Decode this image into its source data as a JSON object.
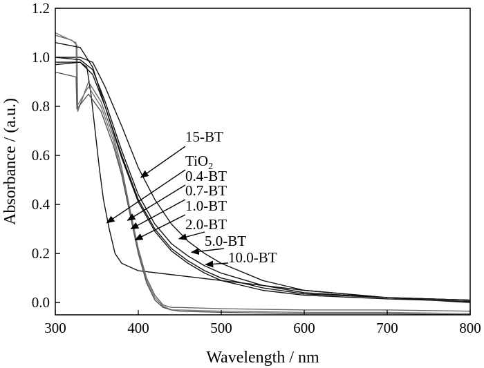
{
  "chart_data": {
    "type": "line",
    "title": "",
    "xlabel": "Wavelength / nm",
    "ylabel": "Absorbance / (a.u.)",
    "xlim": [
      300,
      800
    ],
    "ylim": [
      -0.05,
      1.2
    ],
    "xticks": [
      300,
      400,
      500,
      600,
      700,
      800
    ],
    "yticks": [
      0.0,
      0.2,
      0.4,
      0.6,
      0.8,
      1.0,
      1.2
    ],
    "ytick_labels": [
      "0.0",
      "0.2",
      "0.4",
      "0.6",
      "0.8",
      "1.0",
      "1.2"
    ],
    "grid": false,
    "legend": "arrow-annotations",
    "series": [
      {
        "name": "15-BT",
        "color": "#111111",
        "x": [
          300,
          330,
          345,
          360,
          380,
          400,
          420,
          440,
          460,
          480,
          500,
          550,
          600,
          700,
          800
        ],
        "y": [
          1.0,
          1.0,
          0.98,
          0.88,
          0.72,
          0.55,
          0.42,
          0.32,
          0.25,
          0.2,
          0.16,
          0.09,
          0.05,
          0.02,
          0.01
        ]
      },
      {
        "name": "TiO2",
        "color": "#111111",
        "x": [
          300,
          330,
          338,
          343,
          348,
          353,
          358,
          365,
          372,
          380,
          400,
          450,
          500,
          600,
          700,
          800
        ],
        "y": [
          0.97,
          0.98,
          0.96,
          0.85,
          0.7,
          0.55,
          0.42,
          0.3,
          0.2,
          0.16,
          0.13,
          0.11,
          0.09,
          0.05,
          0.02,
          0.0
        ]
      },
      {
        "name": "0.4-BT",
        "color": "#666666",
        "x": [
          300,
          320,
          326,
          327,
          340,
          355,
          370,
          380,
          390,
          400,
          410,
          420,
          430,
          440,
          450,
          500,
          600,
          700,
          800
        ],
        "y": [
          1.09,
          1.07,
          1.05,
          0.78,
          0.9,
          0.82,
          0.68,
          0.55,
          0.38,
          0.22,
          0.1,
          0.03,
          -0.01,
          -0.02,
          -0.02,
          -0.025,
          -0.03,
          -0.03,
          -0.035
        ]
      },
      {
        "name": "0.7-BT",
        "color": "#777777",
        "x": [
          300,
          325,
          326,
          340,
          355,
          370,
          380,
          390,
          400,
          410,
          420,
          430,
          440,
          450,
          500,
          600,
          700,
          800
        ],
        "y": [
          1.1,
          1.06,
          0.8,
          0.88,
          0.8,
          0.66,
          0.53,
          0.37,
          0.21,
          0.09,
          0.02,
          -0.015,
          -0.03,
          -0.03,
          -0.035,
          -0.04,
          -0.04,
          -0.045
        ]
      },
      {
        "name": "1.0-BT",
        "color": "#555555",
        "x": [
          300,
          325,
          326,
          340,
          355,
          370,
          380,
          390,
          400,
          410,
          420,
          430,
          440,
          450,
          500,
          600,
          700,
          800
        ],
        "y": [
          0.94,
          0.92,
          0.79,
          0.85,
          0.78,
          0.64,
          0.52,
          0.36,
          0.2,
          0.08,
          0.01,
          -0.02,
          -0.03,
          -0.035,
          -0.04,
          -0.045,
          -0.045,
          -0.05
        ]
      },
      {
        "name": "2.0-BT",
        "color": "#111111",
        "x": [
          300,
          330,
          345,
          360,
          380,
          400,
          420,
          440,
          460,
          480,
          500,
          550,
          600,
          700,
          800
        ],
        "y": [
          1.0,
          0.99,
          0.95,
          0.82,
          0.62,
          0.44,
          0.32,
          0.24,
          0.19,
          0.15,
          0.12,
          0.07,
          0.04,
          0.02,
          0.01
        ]
      },
      {
        "name": "5.0-BT",
        "color": "#111111",
        "x": [
          300,
          330,
          345,
          360,
          380,
          400,
          420,
          440,
          460,
          480,
          500,
          550,
          600,
          700,
          800
        ],
        "y": [
          0.98,
          0.98,
          0.93,
          0.8,
          0.6,
          0.42,
          0.3,
          0.22,
          0.17,
          0.13,
          0.1,
          0.06,
          0.035,
          0.02,
          0.01
        ]
      },
      {
        "name": "10.0-BT",
        "color": "#111111",
        "x": [
          300,
          330,
          345,
          360,
          380,
          400,
          420,
          440,
          460,
          480,
          500,
          550,
          600,
          700,
          800
        ],
        "y": [
          1.06,
          1.04,
          0.96,
          0.8,
          0.59,
          0.41,
          0.29,
          0.21,
          0.16,
          0.12,
          0.09,
          0.05,
          0.03,
          0.015,
          0.005
        ]
      }
    ],
    "annotations": [
      {
        "label": "15-BT",
        "sub": "",
        "target": [
          403,
          0.51
        ]
      },
      {
        "label": "TiO",
        "sub": "2",
        "target": [
          362,
          0.325
        ]
      },
      {
        "label": "0.4-BT",
        "sub": "",
        "target": [
          387,
          0.335
        ]
      },
      {
        "label": "0.7-BT",
        "sub": "",
        "target": [
          391,
          0.3
        ]
      },
      {
        "label": "1.0-BT",
        "sub": "",
        "target": [
          396,
          0.255
        ]
      },
      {
        "label": "2.0-BT",
        "sub": "",
        "target": [
          449,
          0.26
        ]
      },
      {
        "label": "5.0-BT",
        "sub": "",
        "target": [
          464,
          0.205
        ]
      },
      {
        "label": "10.0-BT",
        "sub": "",
        "target": [
          481,
          0.155
        ]
      }
    ]
  }
}
